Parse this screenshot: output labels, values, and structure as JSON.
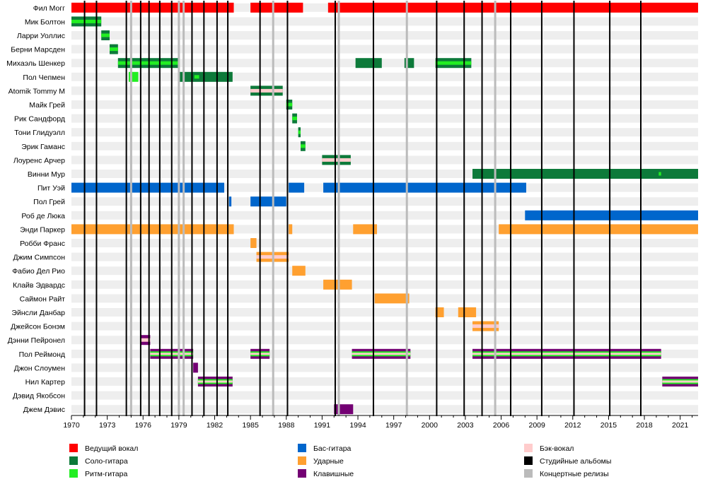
{
  "chart_data": {
    "type": "timeline",
    "title": "",
    "x_range": [
      1970,
      2022.5
    ],
    "ticks": [
      1970,
      1973,
      1976,
      1979,
      1982,
      1985,
      1988,
      1991,
      1994,
      1997,
      2000,
      2003,
      2006,
      2009,
      2012,
      2015,
      2018,
      2021
    ],
    "colors": {
      "vocals": "#ff0000",
      "lead": "#0d7a3a",
      "rhythm": "#22ee22",
      "bass": "#0066cc",
      "drums": "#ffa030",
      "keys": "#730073",
      "backing": "#ffcccc",
      "studio": "#000000",
      "live": "#bbbbbb"
    },
    "legend": [
      {
        "label": "Ведущий вокал",
        "role": "vocals"
      },
      {
        "label": "Соло-гитара",
        "role": "lead"
      },
      {
        "label": "Ритм-гитара",
        "role": "rhythm"
      },
      {
        "label": "Бас-гитара",
        "role": "bass"
      },
      {
        "label": "Ударные",
        "role": "drums"
      },
      {
        "label": "Клавишные",
        "role": "keys"
      },
      {
        "label": "Бэк-вокал",
        "role": "backing"
      },
      {
        "label": "Студийные альбомы",
        "role": "studio"
      },
      {
        "label": "Концертные релизы",
        "role": "live"
      }
    ],
    "studio_albums": [
      1971.1,
      1972.1,
      1974.6,
      1975.8,
      1976.5,
      1977.4,
      1978.4,
      1980.1,
      1981.1,
      1982.2,
      1983.1,
      1985.8,
      1988.1,
      1992.1,
      1995.3,
      2000.6,
      2002.9,
      2004.4,
      2006.8,
      2009.4,
      2012.1,
      2015.1,
      2017.7
    ],
    "live_releases": [
      1975.0,
      1979.0,
      1979.4,
      1986.9,
      1992.4,
      1998.1,
      2005.5
    ],
    "members": [
      {
        "name": "Фил Могг",
        "bars": [
          {
            "role": "vocals",
            "start": 1970.0,
            "end": 1983.6
          },
          {
            "role": "vocals",
            "start": 1985.0,
            "end": 1989.4
          },
          {
            "role": "vocals",
            "start": 1991.5,
            "end": 2022.5
          }
        ]
      },
      {
        "name": "Мик Болтон",
        "bars": [
          {
            "role": "lead",
            "start": 1970.0,
            "end": 1972.5,
            "inner": "rhythm"
          }
        ]
      },
      {
        "name": "Ларри Уоллис",
        "bars": [
          {
            "role": "lead",
            "start": 1972.5,
            "end": 1973.2,
            "inner": "rhythm"
          }
        ]
      },
      {
        "name": "Берни Марсден",
        "bars": [
          {
            "role": "lead",
            "start": 1973.2,
            "end": 1973.9,
            "inner": "rhythm"
          }
        ]
      },
      {
        "name": "Михаэль Шенкер",
        "bars": [
          {
            "role": "lead",
            "start": 1973.9,
            "end": 1979.0,
            "inner": "rhythm"
          },
          {
            "role": "lead",
            "start": 1993.8,
            "end": 1996.0
          },
          {
            "role": "lead",
            "start": 1997.9,
            "end": 1998.7
          },
          {
            "role": "lead",
            "start": 2000.5,
            "end": 2003.5,
            "inner": "rhythm"
          }
        ]
      },
      {
        "name": "Пол Чепмен",
        "bars": [
          {
            "role": "rhythm",
            "start": 1974.8,
            "end": 1975.6
          },
          {
            "role": "lead",
            "start": 1979.0,
            "end": 1983.5,
            "inner_start": 1980.3,
            "inner_end": 1980.7,
            "inner": "rhythm"
          }
        ]
      },
      {
        "name": "Atomik Tommy M",
        "bars": [
          {
            "role": "lead",
            "start": 1985.0,
            "end": 1987.7,
            "inner": "backing"
          }
        ]
      },
      {
        "name": "Майк Грей",
        "bars": [
          {
            "role": "lead",
            "start": 1988.0,
            "end": 1988.5,
            "inner": "rhythm"
          }
        ]
      },
      {
        "name": "Рик Сандфорд",
        "bars": [
          {
            "role": "lead",
            "start": 1988.5,
            "end": 1988.9,
            "inner": "rhythm"
          }
        ]
      },
      {
        "name": "Тони Глидуэлл",
        "bars": [
          {
            "role": "lead",
            "start": 1989.0,
            "end": 1989.2,
            "inner": "rhythm"
          }
        ]
      },
      {
        "name": "Эрик Гаманс",
        "bars": [
          {
            "role": "lead",
            "start": 1989.2,
            "end": 1989.6,
            "inner": "rhythm"
          }
        ]
      },
      {
        "name": "Лоуренс Арчер",
        "bars": [
          {
            "role": "lead",
            "start": 1991.0,
            "end": 1993.4,
            "inner": "backing"
          }
        ]
      },
      {
        "name": "Винни Мур",
        "bars": [
          {
            "role": "lead",
            "start": 2003.6,
            "end": 2022.5,
            "inner_start": 2019.2,
            "inner_end": 2019.4,
            "inner": "rhythm"
          }
        ]
      },
      {
        "name": "Пит Уэй",
        "bars": [
          {
            "role": "bass",
            "start": 1970.0,
            "end": 1982.8
          },
          {
            "role": "bass",
            "start": 1988.2,
            "end": 1989.5
          },
          {
            "role": "bass",
            "start": 1991.1,
            "end": 2008.1
          }
        ]
      },
      {
        "name": "Пол Грей",
        "bars": [
          {
            "role": "bass",
            "start": 1983.2,
            "end": 1983.4
          },
          {
            "role": "bass",
            "start": 1985.0,
            "end": 1988.0
          }
        ]
      },
      {
        "name": "Роб де Люка",
        "bars": [
          {
            "role": "bass",
            "start": 2008.0,
            "end": 2022.5
          }
        ]
      },
      {
        "name": "Энди Паркер",
        "bars": [
          {
            "role": "drums",
            "start": 1970.0,
            "end": 1983.6
          },
          {
            "role": "drums",
            "start": 1988.2,
            "end": 1988.5
          },
          {
            "role": "drums",
            "start": 1993.6,
            "end": 1995.6
          },
          {
            "role": "drums",
            "start": 2005.8,
            "end": 2022.5
          }
        ]
      },
      {
        "name": "Робби Франс",
        "bars": [
          {
            "role": "drums",
            "start": 1985.0,
            "end": 1985.5
          }
        ]
      },
      {
        "name": "Джим Симпсон",
        "bars": [
          {
            "role": "drums",
            "start": 1985.5,
            "end": 1988.2,
            "inner": "backing"
          }
        ]
      },
      {
        "name": "Фабио Дел Рио",
        "bars": [
          {
            "role": "drums",
            "start": 1988.5,
            "end": 1989.6
          }
        ]
      },
      {
        "name": "Клайв Эдвардс",
        "bars": [
          {
            "role": "drums",
            "start": 1991.1,
            "end": 1993.5
          }
        ]
      },
      {
        "name": "Саймон Райт",
        "bars": [
          {
            "role": "drums",
            "start": 1995.4,
            "end": 1998.3
          }
        ]
      },
      {
        "name": "Эйнсли Данбар",
        "bars": [
          {
            "role": "drums",
            "start": 2000.5,
            "end": 2001.2
          },
          {
            "role": "drums",
            "start": 2002.4,
            "end": 2003.9
          }
        ]
      },
      {
        "name": "Джейсон Бонэм",
        "bars": [
          {
            "role": "drums",
            "start": 2003.6,
            "end": 2005.8,
            "inner": "backing"
          }
        ]
      },
      {
        "name": "Дэнни Пейронел",
        "bars": [
          {
            "role": "keys",
            "start": 1975.8,
            "end": 1976.6,
            "inner": "backing"
          }
        ]
      },
      {
        "name": "Пол Реймонд",
        "bars": [
          {
            "role": "keys",
            "start": 1976.6,
            "end": 1980.2,
            "multi": true
          },
          {
            "role": "keys",
            "start": 1985.0,
            "end": 1986.6,
            "multi": true
          },
          {
            "role": "keys",
            "start": 1993.5,
            "end": 1998.4,
            "multi": true
          },
          {
            "role": "keys",
            "start": 2003.6,
            "end": 2019.4,
            "multi": true
          }
        ]
      },
      {
        "name": "Джон Слоумен",
        "bars": [
          {
            "role": "keys",
            "start": 1980.2,
            "end": 1980.6
          }
        ]
      },
      {
        "name": "Нил Картер",
        "bars": [
          {
            "role": "keys",
            "start": 1980.6,
            "end": 1983.5,
            "multi": true
          },
          {
            "role": "keys",
            "start": 2019.5,
            "end": 2022.5,
            "multi": true
          }
        ]
      },
      {
        "name": "Дэвид Якобсон",
        "bars": []
      },
      {
        "name": "Джем Дэвис",
        "bars": [
          {
            "role": "keys",
            "start": 1992.0,
            "end": 1993.6
          }
        ]
      }
    ]
  }
}
